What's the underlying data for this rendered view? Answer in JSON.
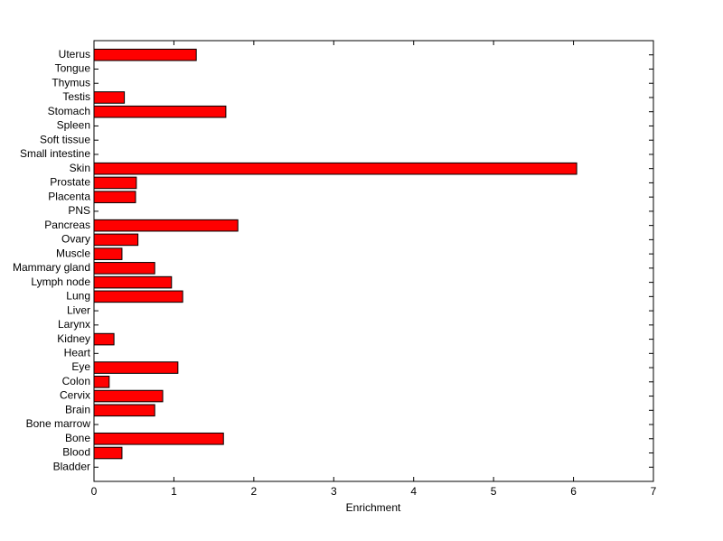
{
  "chart_data": {
    "type": "barh",
    "x_label": "Enrichment",
    "color": "#ff0000",
    "categories": [
      "Bladder",
      "Blood",
      "Bone",
      "Bone marrow",
      "Brain",
      "Cervix",
      "Colon",
      "Eye",
      "Heart",
      "Kidney",
      "Larynx",
      "Liver",
      "Lung",
      "Lymph node",
      "Mammary gland",
      "Muscle",
      "Ovary",
      "Pancreas",
      "PNS",
      "Placenta",
      "Prostate",
      "Skin",
      "Small intestine",
      "Soft tissue",
      "Spleen",
      "Stomach",
      "Testis",
      "Thymus",
      "Tongue",
      "Uterus"
    ],
    "values": [
      0,
      0.35,
      1.62,
      0,
      0.76,
      0.86,
      0.19,
      1.05,
      0,
      0.25,
      0,
      0,
      1.11,
      0.97,
      0.76,
      0.35,
      0.55,
      1.8,
      0,
      0.52,
      0.53,
      6.04,
      0,
      0,
      0,
      1.65,
      0.38,
      0,
      0,
      1.28
    ],
    "xlim": [
      0,
      7
    ],
    "xticks": [
      0,
      1,
      2,
      3,
      4,
      5,
      6,
      7
    ]
  }
}
